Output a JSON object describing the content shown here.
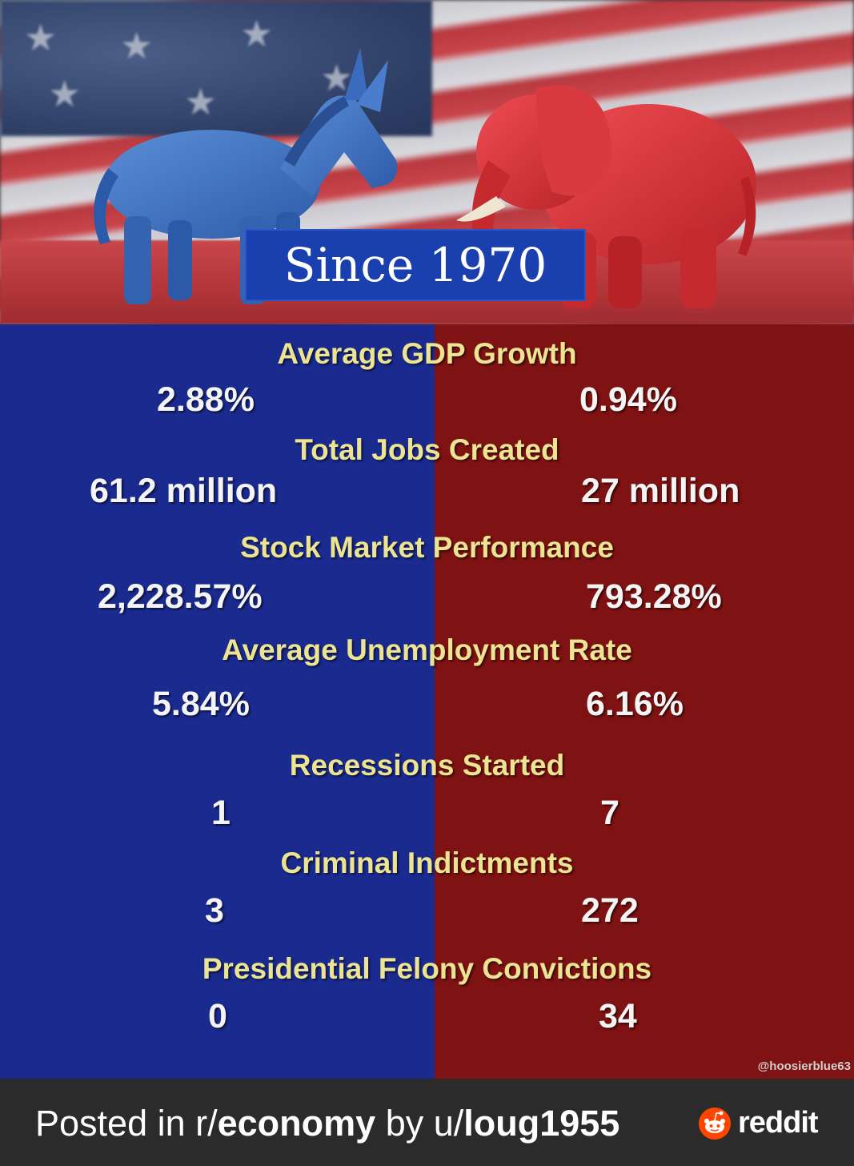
{
  "banner": {
    "title": "Since 1970"
  },
  "metrics": [
    {
      "title": "Average GDP Growth",
      "dem": "2.88%",
      "rep": "0.94%"
    },
    {
      "title": "Total Jobs Created",
      "dem": "61.2 million",
      "rep": "27 million"
    },
    {
      "title": "Stock Market Performance",
      "dem": "2,228.57%",
      "rep": "793.28%"
    },
    {
      "title": "Average Unemployment Rate",
      "dem": "5.84%",
      "rep": "6.16%"
    },
    {
      "title": "Recessions Started",
      "dem": "1",
      "rep": "7"
    },
    {
      "title": "Criminal Indictments",
      "dem": "3",
      "rep": "272"
    },
    {
      "title": "Presidential Felony Convictions",
      "dem": "0",
      "rep": "34"
    }
  ],
  "credit": "@hoosierblue63",
  "footer": {
    "posted_in": "Posted in r/",
    "subreddit": "economy",
    "by": " by u/",
    "username": "loug1955",
    "brand": "reddit"
  },
  "icons": {
    "donkey": "donkey-figurine-icon",
    "elephant": "elephant-figurine-icon",
    "reddit": "reddit-snoo-icon"
  },
  "colors": {
    "blue_panel": "#1a2a8e",
    "red_panel": "#7f1212",
    "title_yellow": "#ece493",
    "banner_blue": "#1a3fae"
  }
}
